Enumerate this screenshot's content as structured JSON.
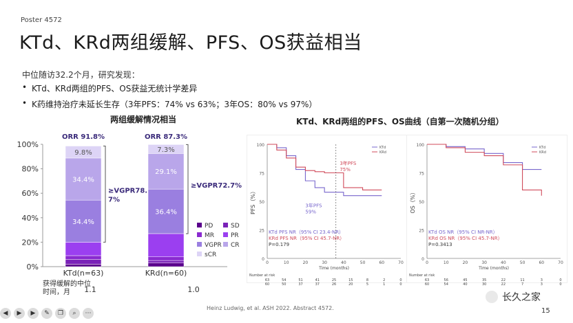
{
  "poster": "Poster 4572",
  "title": "KTd、KRd两组缓解、PFS、OS获益相当",
  "intro": "中位随访32.2个月，研究发现：",
  "bullets": [
    "KTd、KRd两组的PFS、OS获益无统计学差异",
    "K药维持治疗未延长生存（3年PFS：74% vs 63%；3年OS：80% vs 97%）"
  ],
  "bar_chart_title": "两组缓解情况相当",
  "curves_title": "KTd、KRd两组的PFS、OS曲线（自第一次随机分组）",
  "chart_data": [
    {
      "type": "bar",
      "title": "两组缓解情况相当",
      "categories": [
        "KTd(n=63)",
        "KRd(n=60)"
      ],
      "yticks": [
        "0%",
        "20%",
        "40%",
        "60%",
        "80%",
        "100%"
      ],
      "ylim": [
        0,
        100
      ],
      "orr_labels": [
        "ORR 91.8%",
        "ORR 87.3%"
      ],
      "vgpr_labels": [
        "≥VGPR78.\n7%",
        "≥VGPR72.7%"
      ],
      "series": [
        {
          "name": "PD",
          "color": "#5a008c",
          "values": [
            2,
            3
          ]
        },
        {
          "name": "SD",
          "color": "#7a22b8",
          "values": [
            4,
            2
          ]
        },
        {
          "name": "MR",
          "color": "#8a2ad0",
          "values": [
            3,
            3
          ]
        },
        {
          "name": "PR",
          "color": "#9b3ff0",
          "values": [
            11,
            19
          ]
        },
        {
          "name": "VGPR",
          "color": "#9a7fe0",
          "values": [
            34.4,
            36.4
          ]
        },
        {
          "name": "CR",
          "color": "#b9a6ea",
          "values": [
            34.4,
            29.1
          ]
        },
        {
          "name": "sCR",
          "color": "#ddd4f6",
          "values": [
            9.8,
            7.3
          ]
        }
      ],
      "segment_labels": [
        [
          "",
          "",
          "",
          "",
          "34.4%",
          "34.4%",
          "9.8%"
        ],
        [
          "",
          "",
          "",
          "",
          "36.4%",
          "29.1%",
          "7.3%"
        ]
      ],
      "legend": [
        "PD",
        "SD",
        "MR",
        "PR",
        "VGPR",
        "CR",
        "sCR"
      ],
      "median_label": "获得缓解的中位\n时间，月",
      "median_values": [
        "1.1",
        "1.0"
      ]
    },
    {
      "type": "line",
      "ylabel": "PFS（%）",
      "xlabel": "Time (months)",
      "yticks": [
        "0",
        "25",
        "50",
        "75",
        "100"
      ],
      "xticks": [
        "0",
        "10",
        "20",
        "30",
        "40",
        "50",
        "60",
        "70"
      ],
      "legend": [
        "KTd",
        "KRd"
      ],
      "annotations": [
        "3年PFS\n75%",
        "3年PFS\n59%"
      ],
      "stats": [
        "KTd  PFS NR（95% CI 23.4-NR）",
        "KRd  PFS NR（95% CI 45.7-NR）",
        "P=0.179"
      ],
      "number_at_risk_label": "Number at risk",
      "risk_rows": [
        [
          "63",
          "54",
          "51",
          "41",
          "25",
          "15",
          "8",
          "2",
          "0"
        ],
        [
          "60",
          "50",
          "37",
          "37",
          "26",
          "20",
          "5",
          "1",
          "0"
        ]
      ],
      "series": [
        {
          "name": "KTd",
          "color": "#7766cc",
          "x": [
            0,
            5,
            10,
            15,
            20,
            25,
            30,
            40,
            50,
            60
          ],
          "values": [
            100,
            97,
            90,
            78,
            68,
            62,
            58,
            55,
            55,
            55
          ]
        },
        {
          "name": "KRd",
          "color": "#d04a5a",
          "x": [
            0,
            5,
            10,
            15,
            20,
            25,
            30,
            40,
            50,
            60
          ],
          "values": [
            100,
            95,
            88,
            80,
            77,
            76,
            75,
            62,
            60,
            60
          ]
        }
      ]
    },
    {
      "type": "line",
      "ylabel": "OS（%）",
      "xlabel": "Time (months)",
      "yticks": [
        "0",
        "25",
        "50",
        "75",
        "100"
      ],
      "xticks": [
        "0",
        "10",
        "20",
        "30",
        "40",
        "50",
        "60",
        "70"
      ],
      "legend": [
        "KTd",
        "KRd"
      ],
      "stats": [
        "KTd  OS NR（95% CI NR-NR）",
        "KRd  OS NR（95% CI 45.7-NR）",
        "P=0.3413"
      ],
      "number_at_risk_label": "Number at risk",
      "risk_rows": [
        [
          "63",
          "56",
          "45",
          "35",
          "22",
          "11",
          "3",
          "0"
        ],
        [
          "60",
          "54",
          "40",
          "30",
          "22",
          "7",
          "3",
          "0"
        ]
      ],
      "series": [
        {
          "name": "KTd",
          "color": "#7766cc",
          "x": [
            0,
            10,
            20,
            30,
            40,
            50,
            60
          ],
          "values": [
            100,
            98,
            96,
            92,
            84,
            78,
            78
          ]
        },
        {
          "name": "KRd",
          "color": "#d04a5a",
          "x": [
            0,
            10,
            20,
            30,
            40,
            50,
            60
          ],
          "values": [
            100,
            97,
            93,
            90,
            82,
            60,
            55
          ]
        }
      ]
    }
  ],
  "citation": "Heinz Ludwig, et al. ASH 2022. Abstract 4572.",
  "watermark": "长久之家",
  "page_number": "15"
}
